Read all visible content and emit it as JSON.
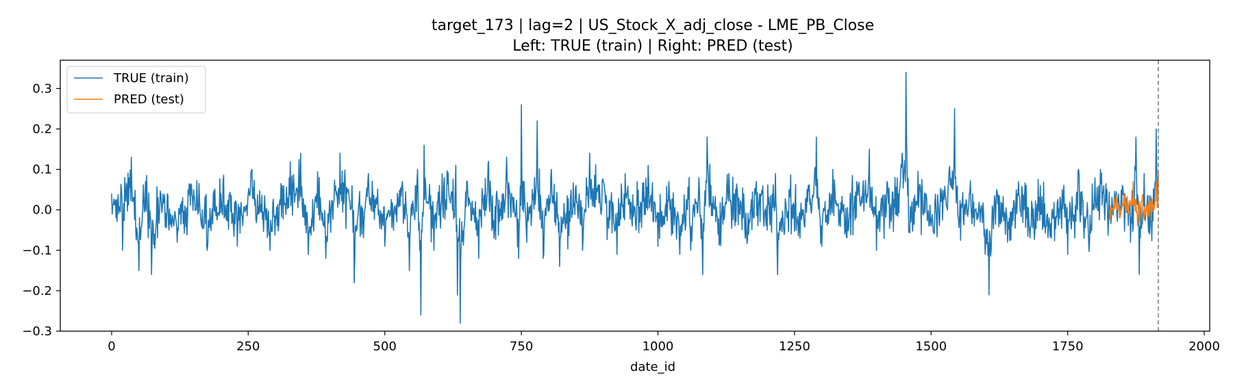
{
  "chart_data": {
    "type": "line",
    "title": "target_173 | lag=2 | US_Stock_X_adj_close - LME_PB_Close",
    "subtitle": "Left: TRUE (train) | Right: PRED (test)",
    "xlabel": "date_id",
    "ylabel": "",
    "xlim": [
      -94,
      2010
    ],
    "ylim": [
      -0.3,
      0.37
    ],
    "xticks": [
      0,
      250,
      500,
      750,
      1000,
      1250,
      1500,
      1750,
      2000
    ],
    "xtick_labels": [
      "0",
      "250",
      "500",
      "750",
      "1000",
      "1250",
      "1500",
      "1750",
      "2000"
    ],
    "yticks": [
      -0.3,
      -0.2,
      -0.1,
      0.0,
      0.1,
      0.2,
      0.3
    ],
    "ytick_labels": [
      "−0.3",
      "−0.2",
      "−0.1",
      "0.0",
      "0.1",
      "0.2",
      "0.3"
    ],
    "grid": false,
    "legend_position": "top-left",
    "vline_x": 1916,
    "series": [
      {
        "name": "TRUE (train)",
        "color": "#1f77b4",
        "x_start": 0,
        "x_end": 1916,
        "points": [
          [
            0,
            0.04
          ],
          [
            8,
            -0.02
          ],
          [
            18,
            0.05
          ],
          [
            20,
            -0.1
          ],
          [
            24,
            0.08
          ],
          [
            36,
            0.13
          ],
          [
            50,
            -0.15
          ],
          [
            62,
            0.07
          ],
          [
            73,
            -0.16
          ],
          [
            90,
            0.04
          ],
          [
            120,
            -0.08
          ],
          [
            150,
            0.05
          ],
          [
            175,
            -0.1
          ],
          [
            200,
            0.04
          ],
          [
            230,
            -0.09
          ],
          [
            257,
            0.1
          ],
          [
            290,
            -0.1
          ],
          [
            315,
            0.06
          ],
          [
            346,
            0.14
          ],
          [
            360,
            -0.11
          ],
          [
            380,
            0.08
          ],
          [
            392,
            -0.12
          ],
          [
            418,
            0.14
          ],
          [
            440,
            0.06
          ],
          [
            444,
            -0.18
          ],
          [
            470,
            0.09
          ],
          [
            500,
            -0.09
          ],
          [
            532,
            0.07
          ],
          [
            545,
            -0.15
          ],
          [
            560,
            0.1
          ],
          [
            566,
            -0.26
          ],
          [
            572,
            0.16
          ],
          [
            590,
            -0.1
          ],
          [
            600,
            0.06
          ],
          [
            630,
            0.11
          ],
          [
            633,
            -0.21
          ],
          [
            638,
            -0.28
          ],
          [
            650,
            0.07
          ],
          [
            672,
            -0.12
          ],
          [
            690,
            0.12
          ],
          [
            700,
            -0.07
          ],
          [
            723,
            0.13
          ],
          [
            745,
            -0.12
          ],
          [
            750,
            0.26
          ],
          [
            760,
            -0.08
          ],
          [
            779,
            0.22
          ],
          [
            790,
            -0.12
          ],
          [
            805,
            0.1
          ],
          [
            820,
            -0.14
          ],
          [
            850,
            0.06
          ],
          [
            862,
            -0.1
          ],
          [
            875,
            0.14
          ],
          [
            900,
            0.07
          ],
          [
            925,
            -0.11
          ],
          [
            940,
            0.09
          ],
          [
            960,
            -0.05
          ],
          [
            982,
            0.11
          ],
          [
            1000,
            -0.09
          ],
          [
            1020,
            0.07
          ],
          [
            1040,
            -0.11
          ],
          [
            1057,
            0.08
          ],
          [
            1060,
            -0.1
          ],
          [
            1075,
            0.08
          ],
          [
            1082,
            -0.16
          ],
          [
            1090,
            0.18
          ],
          [
            1110,
            -0.06
          ],
          [
            1130,
            0.09
          ],
          [
            1160,
            -0.07
          ],
          [
            1180,
            0.07
          ],
          [
            1200,
            -0.05
          ],
          [
            1215,
            0.09
          ],
          [
            1219,
            -0.16
          ],
          [
            1240,
            0.05
          ],
          [
            1260,
            -0.07
          ],
          [
            1275,
            0.06
          ],
          [
            1290,
            0.18
          ],
          [
            1300,
            -0.09
          ],
          [
            1320,
            0.1
          ],
          [
            1342,
            -0.06
          ],
          [
            1364,
            0.07
          ],
          [
            1387,
            0.15
          ],
          [
            1400,
            -0.1
          ],
          [
            1420,
            0.07
          ],
          [
            1440,
            0.04
          ],
          [
            1454,
            0.34
          ],
          [
            1460,
            -0.05
          ],
          [
            1480,
            0.06
          ],
          [
            1500,
            -0.04
          ],
          [
            1520,
            0.05
          ],
          [
            1543,
            0.25
          ],
          [
            1550,
            -0.02
          ],
          [
            1570,
            0.04
          ],
          [
            1590,
            -0.03
          ],
          [
            1606,
            -0.21
          ],
          [
            1620,
            0.05
          ],
          [
            1640,
            -0.08
          ],
          [
            1660,
            0.07
          ],
          [
            1680,
            -0.05
          ],
          [
            1700,
            0.06
          ],
          [
            1720,
            -0.07
          ],
          [
            1740,
            0.05
          ],
          [
            1750,
            -0.11
          ],
          [
            1770,
            0.1
          ],
          [
            1790,
            -0.08
          ],
          [
            1810,
            0.1
          ],
          [
            1830,
            -0.02
          ],
          [
            1850,
            0.06
          ],
          [
            1865,
            -0.08
          ],
          [
            1875,
            0.18
          ],
          [
            1881,
            -0.16
          ],
          [
            1890,
            0.09
          ],
          [
            1900,
            -0.06
          ],
          [
            1910,
            0.07
          ],
          [
            1912,
            0.2
          ],
          [
            1916,
            0.05
          ]
        ],
        "noise_amplitude": 0.045
      },
      {
        "name": "PRED (test)",
        "color": "#ff7f0e",
        "x_start": 1827,
        "x_end": 1916,
        "points": [
          [
            1827,
            0.0
          ],
          [
            1835,
            0.03
          ],
          [
            1845,
            -0.02
          ],
          [
            1855,
            0.04
          ],
          [
            1865,
            0.01
          ],
          [
            1870,
            0.07
          ],
          [
            1878,
            -0.04
          ],
          [
            1885,
            0.02
          ],
          [
            1892,
            -0.01
          ],
          [
            1900,
            0.03
          ],
          [
            1908,
            0.0
          ],
          [
            1912,
            0.07
          ],
          [
            1916,
            0.09
          ]
        ],
        "noise_amplitude": 0.02
      }
    ]
  }
}
